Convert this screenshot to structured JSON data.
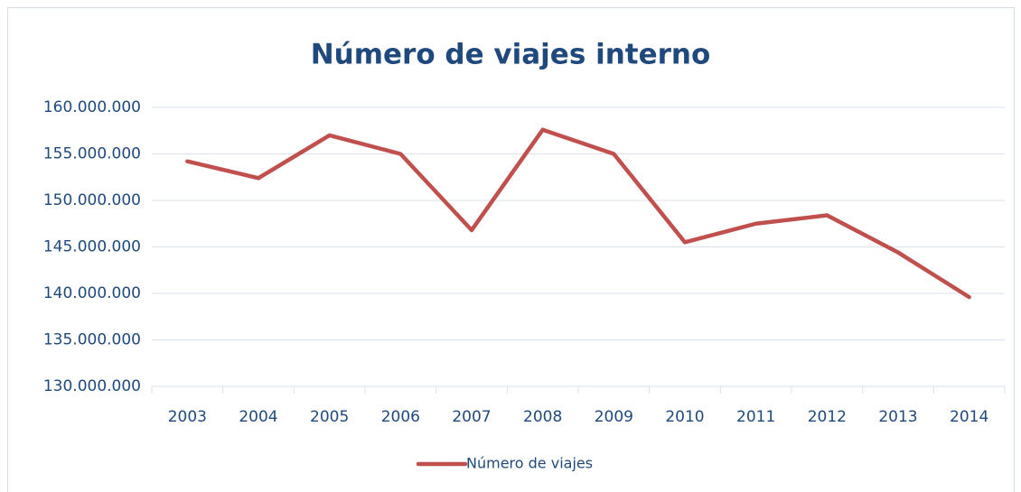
{
  "chart_data": {
    "type": "line",
    "title": "Número de viajes interno",
    "categories": [
      "2003",
      "2004",
      "2005",
      "2006",
      "2007",
      "2008",
      "2009",
      "2010",
      "2011",
      "2012",
      "2013",
      "2014"
    ],
    "series": [
      {
        "name": "Número de viajes",
        "color": "#c0504d",
        "values": [
          154200000,
          152400000,
          157000000,
          155000000,
          146800000,
          157600000,
          155000000,
          145500000,
          147500000,
          148400000,
          144400000,
          139600000
        ]
      }
    ],
    "ylim": [
      130000000,
      160000000
    ],
    "yticks": [
      {
        "value": 130000000,
        "label": "130.000.000"
      },
      {
        "value": 135000000,
        "label": "135.000.000"
      },
      {
        "value": 140000000,
        "label": "140.000.000"
      },
      {
        "value": 145000000,
        "label": "145.000.000"
      },
      {
        "value": 150000000,
        "label": "150.000.000"
      },
      {
        "value": 155000000,
        "label": "155.000.000"
      },
      {
        "value": 160000000,
        "label": "160.000.000"
      }
    ],
    "grid": true,
    "legend": "bottom"
  }
}
